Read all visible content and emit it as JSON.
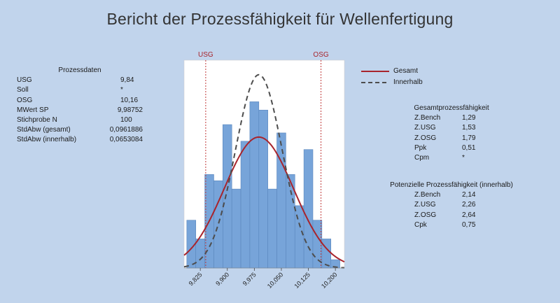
{
  "title": "Bericht der Prozessfähigkeit für Wellenfertigung",
  "process_data": {
    "header": "Prozessdaten",
    "rows": [
      {
        "label": "USG",
        "value": "9,84"
      },
      {
        "label": "Soll",
        "value": "*"
      },
      {
        "label": "OSG",
        "value": "10,16"
      },
      {
        "label": "MWert SP",
        "value": "9,98752"
      },
      {
        "label": "Stichprobe N",
        "value": "100"
      },
      {
        "label": "StdAbw (gesamt)",
        "value": "0,0961886"
      },
      {
        "label": "StdAbw (innerhalb)",
        "value": "0,0653084"
      }
    ]
  },
  "legend": {
    "items": [
      {
        "label": "Gesamt",
        "color": "#a8242c",
        "style": "solid"
      },
      {
        "label": "Innerhalb",
        "color": "#4d4d4d",
        "style": "dashed"
      }
    ]
  },
  "overall_capability": {
    "header": "Gesamtprozessfähigkeit",
    "rows": [
      {
        "label": "Z.Bench",
        "value": "1,29"
      },
      {
        "label": "Z.USG",
        "value": "1,53"
      },
      {
        "label": "Z.OSG",
        "value": "1,79"
      },
      {
        "label": "Ppk",
        "value": "0,51"
      },
      {
        "label": "Cpm",
        "value": "*"
      }
    ]
  },
  "potential_capability": {
    "header": "Potenzielle Prozessfähigkeit (innerhalb)",
    "rows": [
      {
        "label": "Z.Bench",
        "value": "2,14"
      },
      {
        "label": "Z.USG",
        "value": "2,26"
      },
      {
        "label": "Z.OSG",
        "value": "2,64"
      },
      {
        "label": "Cpk",
        "value": "0,75"
      }
    ]
  },
  "chart_data": {
    "type": "bar",
    "x_tick_labels": [
      "9,825",
      "9,900",
      "9,975",
      "10,050",
      "10,125",
      "10,200"
    ],
    "x_ticks": [
      9.825,
      9.9,
      9.975,
      10.05,
      10.125,
      10.2
    ],
    "xlim": [
      9.78,
      10.225
    ],
    "ylim": [
      0,
      1
    ],
    "bin_edges": [
      9.7875,
      9.8125,
      9.8375,
      9.8625,
      9.8875,
      9.9125,
      9.9375,
      9.9625,
      9.9875,
      10.0125,
      10.0375,
      10.0625,
      10.0875,
      10.1125,
      10.1375,
      10.1625,
      10.1875,
      10.2125
    ],
    "bin_heights": [
      0.23,
      0.14,
      0.45,
      0.42,
      0.69,
      0.38,
      0.61,
      0.8,
      0.76,
      0.38,
      0.65,
      0.45,
      0.3,
      0.57,
      0.23,
      0.14,
      0.04
    ],
    "bar_color": "#77a4d9",
    "spec_limits": [
      {
        "label": "USG",
        "value": 9.84
      },
      {
        "label": "OSG",
        "value": 10.16
      }
    ],
    "spec_color": "#c03a3a",
    "curves": [
      {
        "name": "Gesamt",
        "mean": 9.98752,
        "sd": 0.0961886,
        "peak": 0.63,
        "color": "#a8242c",
        "style": "solid"
      },
      {
        "name": "Innerhalb",
        "mean": 9.98752,
        "sd": 0.0653084,
        "peak": 0.93,
        "color": "#4d4d4d",
        "style": "dashed"
      }
    ]
  }
}
